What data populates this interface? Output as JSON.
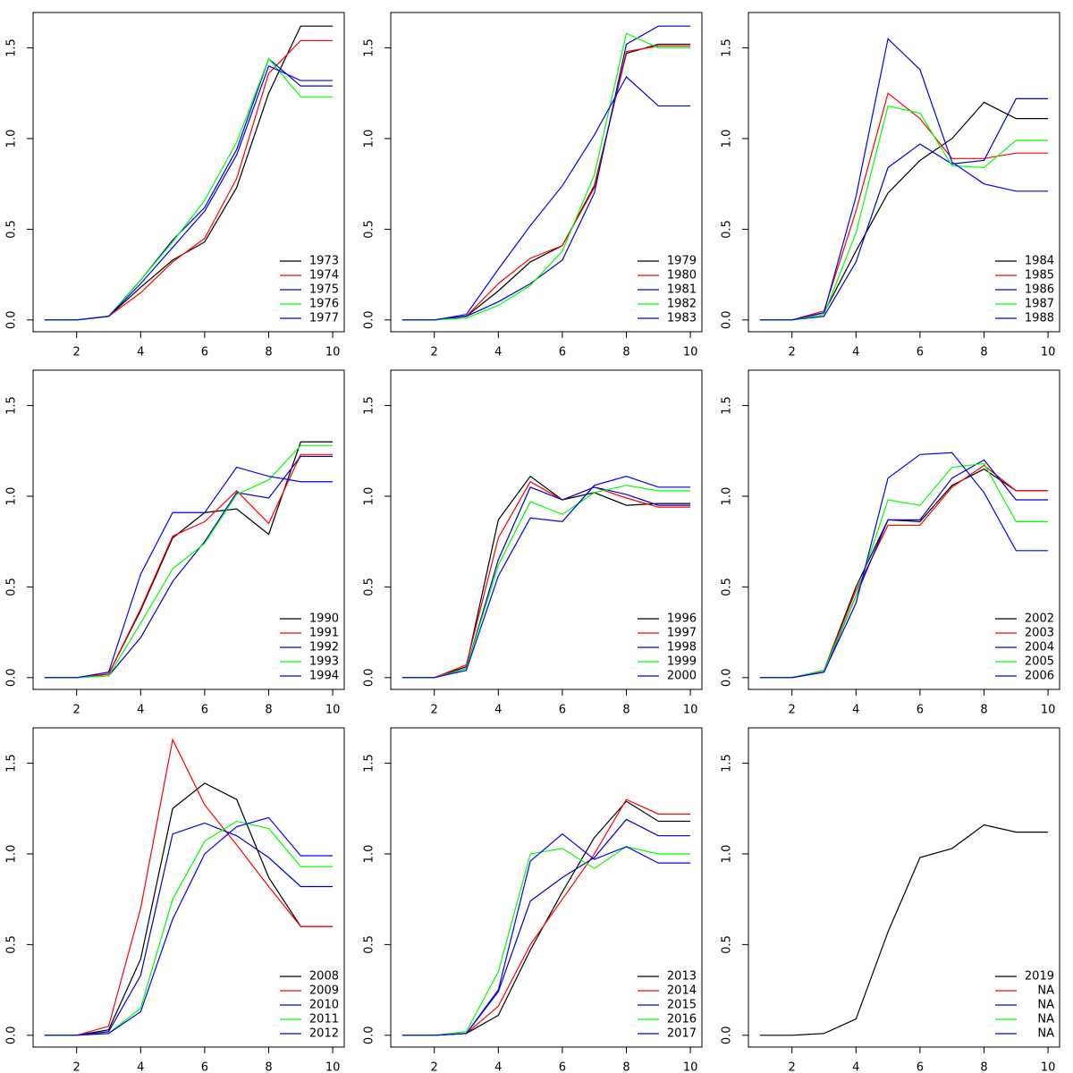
{
  "chart_data": [
    {
      "type": "line",
      "x": [
        1,
        2,
        3,
        4,
        5,
        6,
        7,
        8,
        9,
        10
      ],
      "xlim": [
        0.64,
        10.36
      ],
      "ylim": [
        -0.065,
        1.695
      ],
      "xticks": [
        2,
        4,
        6,
        8,
        10
      ],
      "yticks": [
        {
          "value": 0,
          "label": "0.0"
        },
        0.5,
        {
          "value": 1,
          "label": "1.0"
        },
        1.5
      ],
      "legend": "bottomright",
      "series": [
        {
          "name": "1973",
          "color": "#000000",
          "values": [
            0,
            0,
            0.02,
            0.18,
            0.33,
            0.43,
            0.73,
            1.25,
            1.62,
            1.62
          ]
        },
        {
          "name": "1974",
          "color": "#ff0000",
          "values": [
            0,
            0,
            0.02,
            0.15,
            0.32,
            0.45,
            0.78,
            1.36,
            1.54,
            1.54
          ]
        },
        {
          "name": "1975",
          "color": "#0000cd",
          "values": [
            0,
            0,
            0.02,
            0.22,
            0.44,
            0.62,
            0.94,
            1.44,
            1.29,
            1.29
          ]
        },
        {
          "name": "1976",
          "color": "#00ff00",
          "values": [
            0,
            0,
            0.02,
            0.22,
            0.43,
            0.66,
            0.98,
            1.44,
            1.23,
            1.23
          ]
        },
        {
          "name": "1977",
          "color": "#0000ff",
          "values": [
            0,
            0,
            0.02,
            0.2,
            0.4,
            0.6,
            0.91,
            1.4,
            1.32,
            1.32
          ]
        }
      ]
    },
    {
      "type": "line",
      "x": [
        1,
        2,
        3,
        4,
        5,
        6,
        7,
        8,
        9,
        10
      ],
      "xlim": [
        0.64,
        10.36
      ],
      "ylim": [
        -0.065,
        1.695
      ],
      "xticks": [
        2,
        4,
        6,
        8,
        10
      ],
      "yticks": [
        {
          "value": 0,
          "label": "0.0"
        },
        0.5,
        {
          "value": 1,
          "label": "1.0"
        },
        1.5
      ],
      "legend": "bottomright",
      "series": [
        {
          "name": "1979",
          "color": "#000000",
          "values": [
            0,
            0,
            0.02,
            0.16,
            0.32,
            0.41,
            0.74,
            1.47,
            1.52,
            1.52
          ]
        },
        {
          "name": "1980",
          "color": "#ff0000",
          "values": [
            0,
            0,
            0.02,
            0.2,
            0.34,
            0.41,
            0.73,
            1.48,
            1.51,
            1.51
          ]
        },
        {
          "name": "1981",
          "color": "#0000cd",
          "values": [
            0,
            0,
            0.02,
            0.1,
            0.2,
            0.33,
            0.7,
            1.52,
            1.62,
            1.62
          ]
        },
        {
          "name": "1982",
          "color": "#00ff00",
          "values": [
            0,
            0,
            0.01,
            0.08,
            0.19,
            0.38,
            0.8,
            1.58,
            1.5,
            1.5
          ]
        },
        {
          "name": "1983",
          "color": "#0000ff",
          "values": [
            0,
            0,
            0.03,
            0.28,
            0.52,
            0.74,
            1.02,
            1.34,
            1.18,
            1.18
          ]
        }
      ]
    },
    {
      "type": "line",
      "x": [
        1,
        2,
        3,
        4,
        5,
        6,
        7,
        8,
        9,
        10
      ],
      "xlim": [
        0.64,
        10.36
      ],
      "ylim": [
        -0.065,
        1.695
      ],
      "xticks": [
        2,
        4,
        6,
        8,
        10
      ],
      "yticks": [
        {
          "value": 0,
          "label": "0.0"
        },
        0.5,
        {
          "value": 1,
          "label": "1.0"
        },
        1.5
      ],
      "legend": "bottomright",
      "series": [
        {
          "name": "1984",
          "color": "#000000",
          "values": [
            0,
            0,
            0.04,
            0.38,
            0.7,
            0.88,
            1.0,
            1.2,
            1.11,
            1.11
          ]
        },
        {
          "name": "1985",
          "color": "#ff0000",
          "values": [
            0,
            0,
            0.05,
            0.6,
            1.25,
            1.11,
            0.89,
            0.89,
            0.92,
            0.92
          ]
        },
        {
          "name": "1986",
          "color": "#0000cd",
          "values": [
            0,
            0,
            0.02,
            0.32,
            0.84,
            0.97,
            0.86,
            0.88,
            1.22,
            1.22
          ]
        },
        {
          "name": "1987",
          "color": "#00ff00",
          "values": [
            0,
            0,
            0.03,
            0.48,
            1.18,
            1.14,
            0.85,
            0.84,
            0.99,
            0.99
          ]
        },
        {
          "name": "1988",
          "color": "#0000ff",
          "values": [
            0,
            0,
            0.04,
            0.68,
            1.55,
            1.38,
            0.87,
            0.75,
            0.71,
            0.71
          ]
        }
      ]
    },
    {
      "type": "line",
      "x": [
        1,
        2,
        3,
        4,
        5,
        6,
        7,
        8,
        9,
        10
      ],
      "xlim": [
        0.64,
        10.36
      ],
      "ylim": [
        -0.065,
        1.695
      ],
      "xticks": [
        2,
        4,
        6,
        8,
        10
      ],
      "yticks": [
        {
          "value": 0,
          "label": "0.0"
        },
        0.5,
        {
          "value": 1,
          "label": "1.0"
        },
        1.5
      ],
      "legend": "bottomright",
      "series": [
        {
          "name": "1990",
          "color": "#000000",
          "values": [
            0,
            0,
            0.02,
            0.37,
            0.77,
            0.91,
            0.93,
            0.79,
            1.3,
            1.3
          ]
        },
        {
          "name": "1991",
          "color": "#ff0000",
          "values": [
            0,
            0,
            0.02,
            0.38,
            0.78,
            0.86,
            1.03,
            0.85,
            1.23,
            1.23
          ]
        },
        {
          "name": "1992",
          "color": "#0000cd",
          "values": [
            0,
            0,
            0.01,
            0.22,
            0.53,
            0.75,
            1.02,
            0.99,
            1.22,
            1.22
          ]
        },
        {
          "name": "1993",
          "color": "#00ff00",
          "values": [
            0,
            0,
            0.01,
            0.3,
            0.6,
            0.74,
            1.01,
            1.09,
            1.28,
            1.28
          ]
        },
        {
          "name": "1994",
          "color": "#0000ff",
          "values": [
            0,
            0,
            0.03,
            0.57,
            0.91,
            0.91,
            1.16,
            1.11,
            1.08,
            1.08
          ]
        }
      ]
    },
    {
      "type": "line",
      "x": [
        1,
        2,
        3,
        4,
        5,
        6,
        7,
        8,
        9,
        10
      ],
      "xlim": [
        0.64,
        10.36
      ],
      "ylim": [
        -0.065,
        1.695
      ],
      "xticks": [
        2,
        4,
        6,
        8,
        10
      ],
      "yticks": [
        {
          "value": 0,
          "label": "0.0"
        },
        0.5,
        {
          "value": 1,
          "label": "1.0"
        },
        1.5
      ],
      "legend": "bottomright",
      "series": [
        {
          "name": "1996",
          "color": "#000000",
          "values": [
            0,
            0,
            0.06,
            0.87,
            1.11,
            0.98,
            1.02,
            0.95,
            0.96,
            0.96
          ]
        },
        {
          "name": "1997",
          "color": "#ff0000",
          "values": [
            0,
            0,
            0.07,
            0.77,
            1.08,
            0.98,
            1.05,
            0.99,
            0.94,
            0.94
          ]
        },
        {
          "name": "1998",
          "color": "#0000cd",
          "values": [
            0,
            0,
            0.05,
            0.65,
            1.05,
            0.98,
            1.05,
            1.01,
            0.95,
            0.95
          ]
        },
        {
          "name": "1999",
          "color": "#00ff00",
          "values": [
            0,
            0,
            0.05,
            0.62,
            0.97,
            0.9,
            1.02,
            1.06,
            1.03,
            1.03
          ]
        },
        {
          "name": "2000",
          "color": "#0000ff",
          "values": [
            0,
            0,
            0.04,
            0.56,
            0.88,
            0.86,
            1.06,
            1.11,
            1.05,
            1.05
          ]
        }
      ]
    },
    {
      "type": "line",
      "x": [
        1,
        2,
        3,
        4,
        5,
        6,
        7,
        8,
        9,
        10
      ],
      "xlim": [
        0.64,
        10.36
      ],
      "ylim": [
        -0.065,
        1.695
      ],
      "xticks": [
        2,
        4,
        6,
        8,
        10
      ],
      "yticks": [
        {
          "value": 0,
          "label": "0.0"
        },
        0.5,
        {
          "value": 1,
          "label": "1.0"
        },
        1.5
      ],
      "legend": "bottomright",
      "series": [
        {
          "name": "2002",
          "color": "#000000",
          "values": [
            0,
            0,
            0.04,
            0.5,
            0.87,
            0.86,
            1.06,
            1.15,
            1.03,
            1.03
          ]
        },
        {
          "name": "2003",
          "color": "#ff0000",
          "values": [
            0,
            0,
            0.04,
            0.48,
            0.84,
            0.84,
            1.05,
            1.17,
            1.03,
            1.03
          ]
        },
        {
          "name": "2004",
          "color": "#0000cd",
          "values": [
            0,
            0,
            0.03,
            0.45,
            0.87,
            0.87,
            1.1,
            1.2,
            0.98,
            0.98
          ]
        },
        {
          "name": "2005",
          "color": "#00ff00",
          "values": [
            0,
            0,
            0.04,
            0.45,
            0.98,
            0.95,
            1.16,
            1.18,
            0.86,
            0.86
          ]
        },
        {
          "name": "2006",
          "color": "#0000ff",
          "values": [
            0,
            0,
            0.03,
            0.41,
            1.1,
            1.23,
            1.24,
            1.02,
            0.7,
            0.7
          ]
        }
      ]
    },
    {
      "type": "line",
      "x": [
        1,
        2,
        3,
        4,
        5,
        6,
        7,
        8,
        9,
        10
      ],
      "xlim": [
        0.64,
        10.36
      ],
      "ylim": [
        -0.065,
        1.695
      ],
      "xticks": [
        2,
        4,
        6,
        8,
        10
      ],
      "yticks": [
        {
          "value": 0,
          "label": "0.0"
        },
        0.5,
        {
          "value": 1,
          "label": "1.0"
        },
        1.5
      ],
      "legend": "bottomright",
      "series": [
        {
          "name": "2008",
          "color": "#000000",
          "values": [
            0,
            0,
            0.03,
            0.42,
            1.25,
            1.39,
            1.3,
            0.87,
            0.6,
            0.6
          ]
        },
        {
          "name": "2009",
          "color": "#ff0000",
          "values": [
            0,
            0,
            0.05,
            0.7,
            1.63,
            1.27,
            1.05,
            0.82,
            0.6,
            0.6
          ]
        },
        {
          "name": "2010",
          "color": "#0000cd",
          "values": [
            0,
            0,
            0.02,
            0.33,
            1.11,
            1.17,
            1.1,
            0.98,
            0.82,
            0.82
          ]
        },
        {
          "name": "2011",
          "color": "#00ff00",
          "values": [
            0,
            0,
            0.01,
            0.15,
            0.75,
            1.07,
            1.18,
            1.14,
            0.93,
            0.93
          ]
        },
        {
          "name": "2012",
          "color": "#0000ff",
          "values": [
            0,
            0,
            0.01,
            0.13,
            0.64,
            1.0,
            1.15,
            1.2,
            0.99,
            0.99
          ]
        }
      ]
    },
    {
      "type": "line",
      "x": [
        1,
        2,
        3,
        4,
        5,
        6,
        7,
        8,
        9,
        10
      ],
      "xlim": [
        0.64,
        10.36
      ],
      "ylim": [
        -0.065,
        1.695
      ],
      "xticks": [
        2,
        4,
        6,
        8,
        10
      ],
      "yticks": [
        {
          "value": 0,
          "label": "0.0"
        },
        0.5,
        {
          "value": 1,
          "label": "1.0"
        },
        1.5
      ],
      "legend": "bottomright",
      "series": [
        {
          "name": "2013",
          "color": "#000000",
          "values": [
            0,
            0,
            0.01,
            0.11,
            0.47,
            0.79,
            1.09,
            1.29,
            1.18,
            1.18
          ]
        },
        {
          "name": "2014",
          "color": "#ff0000",
          "values": [
            0,
            0,
            0.01,
            0.16,
            0.5,
            0.75,
            1.0,
            1.3,
            1.22,
            1.22
          ]
        },
        {
          "name": "2015",
          "color": "#0000cd",
          "values": [
            0,
            0,
            0.01,
            0.24,
            0.74,
            0.87,
            0.98,
            1.19,
            1.1,
            1.1
          ]
        },
        {
          "name": "2016",
          "color": "#00ff00",
          "values": [
            0,
            0,
            0.02,
            0.35,
            1.0,
            1.03,
            0.92,
            1.04,
            1.0,
            1.0
          ]
        },
        {
          "name": "2017",
          "color": "#0000ff",
          "values": [
            0,
            0,
            0.01,
            0.25,
            0.96,
            1.11,
            0.97,
            1.04,
            0.95,
            0.95
          ]
        }
      ]
    },
    {
      "type": "line",
      "x": [
        1,
        2,
        3,
        4,
        5,
        6,
        7,
        8,
        9,
        10
      ],
      "xlim": [
        0.64,
        10.36
      ],
      "ylim": [
        -0.065,
        1.695
      ],
      "xticks": [
        2,
        4,
        6,
        8,
        10
      ],
      "yticks": [
        {
          "value": 0,
          "label": "0.0"
        },
        0.5,
        {
          "value": 1,
          "label": "1.0"
        },
        1.5
      ],
      "legend": "bottomright",
      "series": [
        {
          "name": "2019",
          "color": "#000000",
          "values": [
            0,
            0,
            0.01,
            0.09,
            0.57,
            0.98,
            1.03,
            1.16,
            1.12,
            1.12
          ]
        },
        {
          "name": "NA",
          "color": "#ff0000",
          "values": [
            null,
            null,
            null,
            null,
            null,
            null,
            null,
            null,
            null,
            null
          ]
        },
        {
          "name": "NA",
          "color": "#0000cd",
          "values": [
            null,
            null,
            null,
            null,
            null,
            null,
            null,
            null,
            null,
            null
          ]
        },
        {
          "name": "NA",
          "color": "#00ff00",
          "values": [
            null,
            null,
            null,
            null,
            null,
            null,
            null,
            null,
            null,
            null
          ]
        },
        {
          "name": "NA",
          "color": "#0000ff",
          "values": [
            null,
            null,
            null,
            null,
            null,
            null,
            null,
            null,
            null,
            null
          ]
        }
      ]
    }
  ]
}
